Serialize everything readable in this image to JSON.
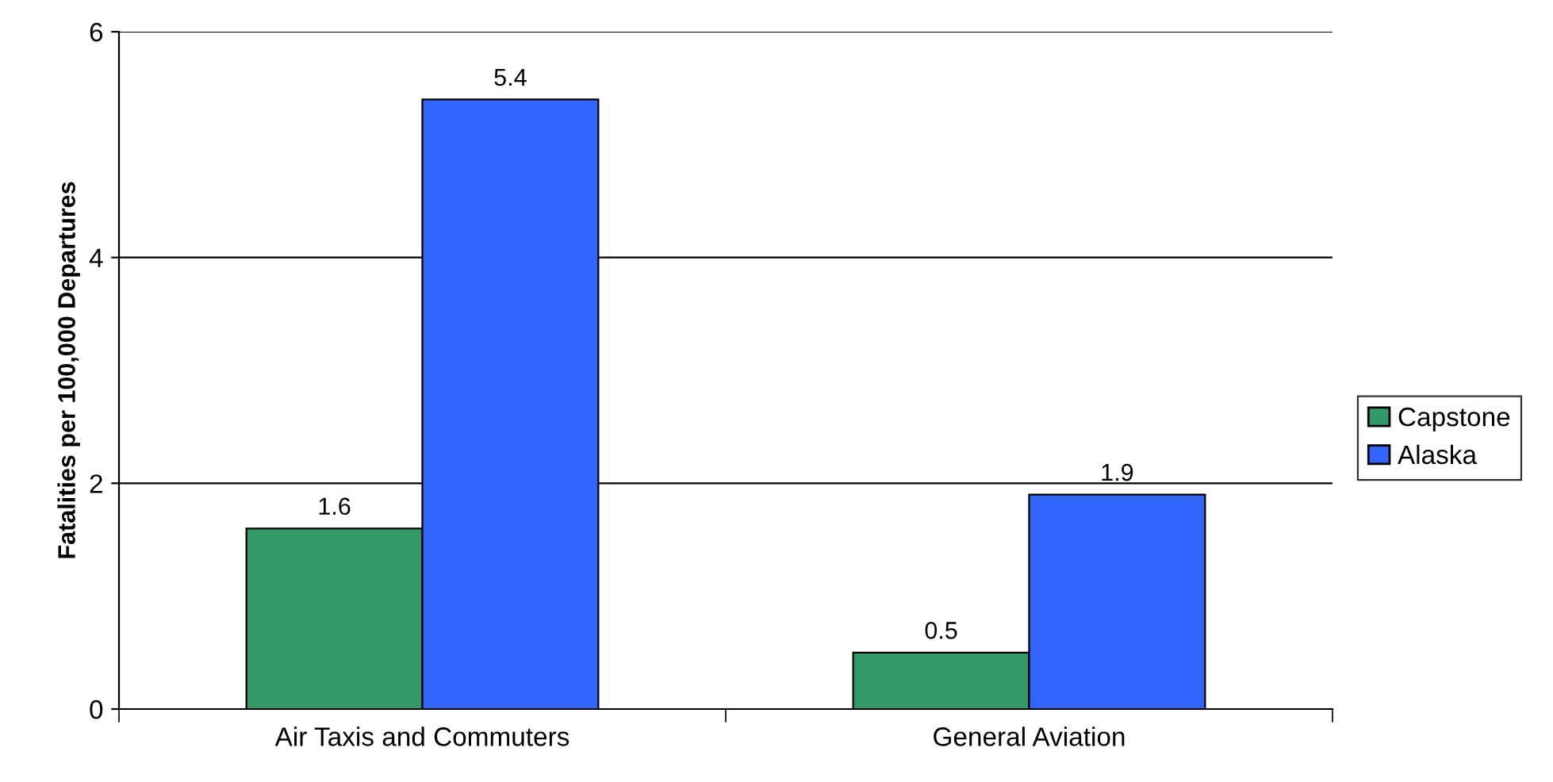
{
  "chart_data": {
    "type": "bar",
    "ylabel": "Fatalities per 100,000 Departures",
    "categories": [
      "Air Taxis and Commuters",
      "General Aviation"
    ],
    "series": [
      {
        "name": "Capstone",
        "color": "#339966",
        "values": [
          1.6,
          0.5
        ]
      },
      {
        "name": "Alaska",
        "color": "#3366ff",
        "values": [
          5.4,
          1.9
        ]
      }
    ],
    "ylim": [
      0,
      6
    ],
    "yticks": [
      0,
      2,
      4,
      6
    ],
    "grid": "y",
    "legend": "right",
    "data_labels": true
  }
}
